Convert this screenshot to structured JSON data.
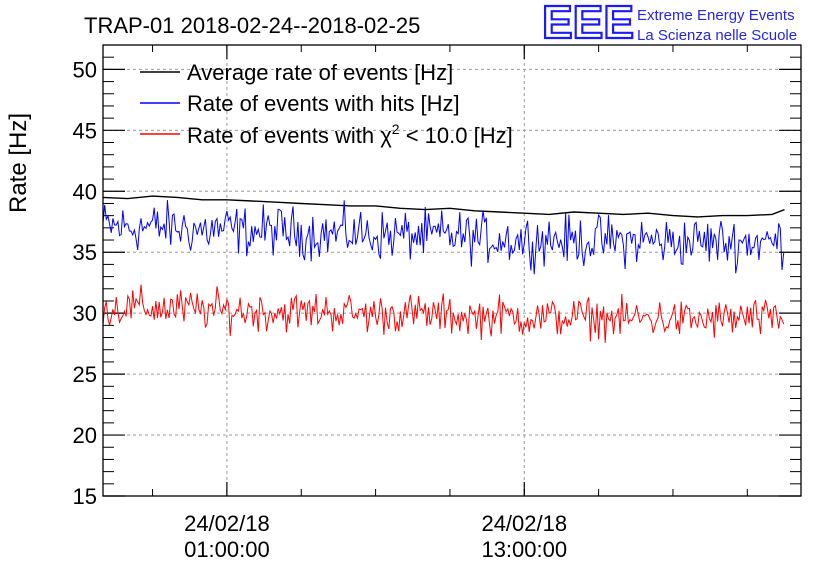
{
  "chart_data": {
    "type": "line",
    "title": "TRAP-01 2018-02-24--2018-02-25",
    "ylabel": "Rate [Hz]",
    "xlabel": "",
    "ylim": [
      15,
      52
    ],
    "yticks": [
      15,
      20,
      25,
      30,
      35,
      40,
      45,
      50
    ],
    "xlim": [
      "2018-02-23 20:00:00",
      "2018-02-25 00:10:00"
    ],
    "xticks": [
      {
        "date": "24/02/18",
        "time": "01:00:00",
        "x": "2018-02-24 01:00:00"
      },
      {
        "date": "24/02/18",
        "time": "13:00:00",
        "x": "2018-02-24 13:00:00"
      }
    ],
    "grid": true,
    "legend_position": "top-left",
    "series": [
      {
        "name": "Average rate of events [Hz]",
        "color": "#000000",
        "x": [
          "2018-02-23 20:00",
          "2018-02-23 21:00",
          "2018-02-23 22:00",
          "2018-02-23 23:00",
          "2018-02-24 00:00",
          "2018-02-24 01:00",
          "2018-02-24 02:00",
          "2018-02-24 03:00",
          "2018-02-24 04:00",
          "2018-02-24 05:00",
          "2018-02-24 06:00",
          "2018-02-24 07:00",
          "2018-02-24 08:00",
          "2018-02-24 09:00",
          "2018-02-24 10:00",
          "2018-02-24 11:00",
          "2018-02-24 12:00",
          "2018-02-24 13:00",
          "2018-02-24 14:00",
          "2018-02-24 15:00",
          "2018-02-24 16:00",
          "2018-02-24 17:00",
          "2018-02-24 18:00",
          "2018-02-24 19:00",
          "2018-02-24 20:00",
          "2018-02-24 21:00",
          "2018-02-24 22:00",
          "2018-02-24 23:00",
          "2018-02-24 23:30"
        ],
        "values": [
          39.5,
          39.4,
          39.6,
          39.5,
          39.3,
          39.3,
          39.2,
          39.1,
          39.0,
          38.9,
          38.8,
          38.8,
          38.6,
          38.5,
          38.6,
          38.4,
          38.3,
          38.2,
          38.1,
          38.3,
          38.2,
          38.1,
          38.2,
          38.0,
          37.9,
          38.0,
          38.0,
          38.1,
          38.5
        ]
      },
      {
        "name": "Rate of events with hits [Hz]",
        "color": "#0000ff",
        "x": [
          "2018-02-23 20:00",
          "2018-02-23 21:00",
          "2018-02-23 22:00",
          "2018-02-23 23:00",
          "2018-02-24 00:00",
          "2018-02-24 01:00",
          "2018-02-24 02:00",
          "2018-02-24 03:00",
          "2018-02-24 04:00",
          "2018-02-24 05:00",
          "2018-02-24 06:00",
          "2018-02-24 07:00",
          "2018-02-24 08:00",
          "2018-02-24 09:00",
          "2018-02-24 10:00",
          "2018-02-24 11:00",
          "2018-02-24 12:00",
          "2018-02-24 13:00",
          "2018-02-24 14:00",
          "2018-02-24 15:00",
          "2018-02-24 16:00",
          "2018-02-24 17:00",
          "2018-02-24 18:00",
          "2018-02-24 19:00",
          "2018-02-24 20:00",
          "2018-02-24 21:00",
          "2018-02-24 22:00",
          "2018-02-24 23:00",
          "2018-02-24 23:30"
        ],
        "values": [
          37.2,
          37.0,
          37.1,
          37.0,
          36.8,
          36.9,
          36.7,
          36.8,
          36.6,
          36.5,
          36.6,
          36.4,
          36.4,
          36.3,
          36.4,
          36.2,
          36.1,
          36.0,
          36.1,
          35.9,
          36.0,
          35.9,
          36.0,
          35.8,
          35.9,
          35.8,
          35.9,
          35.8,
          36.0
        ],
        "spread": 2.0
      },
      {
        "name": "Rate of events with χ² < 10.0 [Hz]",
        "color": "#ff0000",
        "x": [
          "2018-02-23 20:00",
          "2018-02-23 21:00",
          "2018-02-23 22:00",
          "2018-02-23 23:00",
          "2018-02-24 00:00",
          "2018-02-24 01:00",
          "2018-02-24 02:00",
          "2018-02-24 03:00",
          "2018-02-24 04:00",
          "2018-02-24 05:00",
          "2018-02-24 06:00",
          "2018-02-24 07:00",
          "2018-02-24 08:00",
          "2018-02-24 09:00",
          "2018-02-24 10:00",
          "2018-02-24 11:00",
          "2018-02-24 12:00",
          "2018-02-24 13:00",
          "2018-02-24 14:00",
          "2018-02-24 15:00",
          "2018-02-24 16:00",
          "2018-02-24 17:00",
          "2018-02-24 18:00",
          "2018-02-24 19:00",
          "2018-02-24 20:00",
          "2018-02-24 21:00",
          "2018-02-24 22:00",
          "2018-02-24 23:00",
          "2018-02-24 23:30"
        ],
        "values": [
          30.3,
          30.5,
          30.4,
          30.4,
          30.3,
          30.2,
          30.2,
          30.1,
          30.1,
          30.2,
          30.0,
          29.9,
          30.0,
          29.9,
          29.8,
          29.7,
          29.8,
          29.7,
          29.6,
          29.7,
          29.6,
          29.5,
          29.6,
          29.5,
          29.4,
          29.5,
          29.6,
          29.4,
          29.6
        ],
        "spread": 1.6
      }
    ]
  },
  "legend": {
    "avg": "Average rate of events [Hz]",
    "hits": "Rate of events with hits [Hz]",
    "chi_prefix": "Rate of events with ",
    "chi_symbol": "χ",
    "chi_sup": "2",
    "chi_suffix": " < 10.0 [Hz]"
  },
  "brand": {
    "logo": "EEE",
    "line1": "Extreme Energy Events",
    "line2": "La Scienza nelle Scuole"
  }
}
